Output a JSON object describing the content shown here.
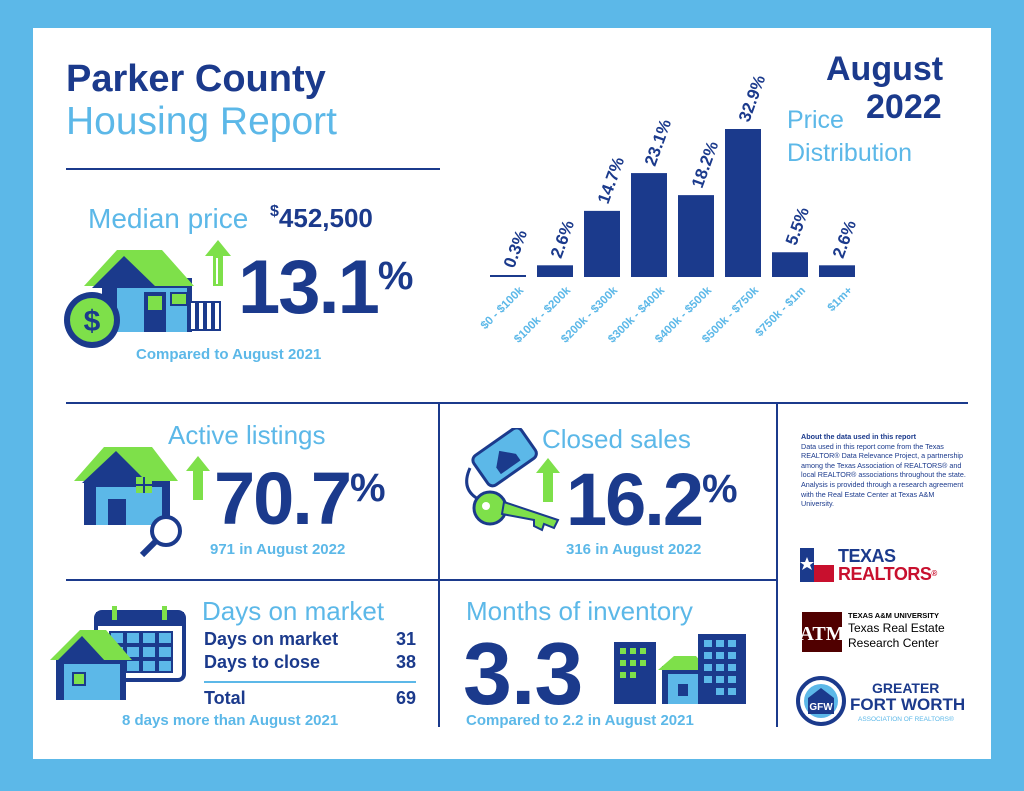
{
  "header": {
    "title_line1": "Parker County",
    "title_line2": "Housing Report",
    "month": "August",
    "year": "2022"
  },
  "median_price": {
    "label": "Median price",
    "currency_symbol": "$",
    "value": "452,500",
    "change_number": "13.1",
    "change_unit": "%",
    "comparison": "Compared to August 2021"
  },
  "price_distribution": {
    "label_line1": "Price",
    "label_line2": "Distribution"
  },
  "chart_data": {
    "type": "bar",
    "categories": [
      "$0 - $100k",
      "$100k - $200k",
      "$200k - $300k",
      "$300k - $400k",
      "$400k - $500k",
      "$500k - $750k",
      "$750k - $1m",
      "$1m+"
    ],
    "values": [
      0.3,
      2.6,
      14.7,
      23.1,
      18.2,
      32.9,
      5.5,
      2.6
    ],
    "value_labels": [
      "0.3%",
      "2.6%",
      "14.7%",
      "23.1%",
      "18.2%",
      "32.9%",
      "5.5%",
      "2.6%"
    ],
    "title": "",
    "xlabel": "",
    "ylabel": "",
    "ylim": [
      0,
      32.9
    ],
    "grid": false,
    "bar_color": "#1b3a8c"
  },
  "active_listings": {
    "label": "Active listings",
    "change_number": "70.7",
    "change_unit": "%",
    "detail": "971 in August 2022"
  },
  "closed_sales": {
    "label": "Closed sales",
    "change_number": "16.2",
    "change_unit": "%",
    "detail": "316 in August 2022"
  },
  "days_on_market": {
    "label": "Days on market",
    "rows": [
      {
        "name": "Days on market",
        "value": "31"
      },
      {
        "name": "Days to close",
        "value": "38"
      }
    ],
    "total_label": "Total",
    "total_value": "69",
    "comparison": "8 days more than August 2021"
  },
  "months_inventory": {
    "label": "Months of inventory",
    "value": "3.3",
    "comparison": "Compared to 2.2 in August 2021"
  },
  "about": {
    "heading": "About the data used in this report",
    "body": "Data used in this report come from the Texas REALTOR® Data Relevance Project, a partnership among the Texas Association of REALTORS® and local REALTOR® associations throughout the state. Analysis is provided through a research agreement with the Real Estate Center at Texas A&M University."
  },
  "logos": {
    "texas_realtors_line1": "TEXAS",
    "texas_realtors_line2": "REALTORS",
    "texas_realtors_mark": "®",
    "tamu_line1": "TEXAS A&M UNIVERSITY",
    "tamu_line2": "Texas Real Estate",
    "tamu_line3": "Research Center",
    "gfw_line1": "GREATER",
    "gfw_line2": "FORT WORTH",
    "gfw_line3": "ASSOCIATION OF REALTORS®"
  },
  "colors": {
    "navy": "#1b3a8c",
    "light_blue": "#5cb8e8",
    "green": "#7ee04a",
    "border": "#5cb8e8"
  },
  "icons": [
    "house-with-dollar-icon",
    "up-arrow-icon",
    "house-magnifier-icon",
    "key-tag-icon",
    "calendar-house-icon",
    "buildings-icon"
  ]
}
